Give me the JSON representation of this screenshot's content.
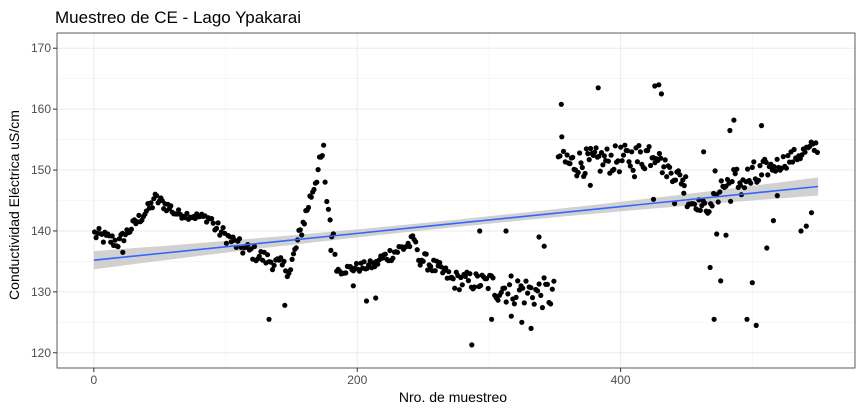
{
  "chart_data": {
    "type": "scatter",
    "title": "Muestreo de CE - Lago Ypakarai",
    "xlabel": "Nro. de muestreo",
    "ylabel": "Conductividad Eléctrica uS/cm",
    "xlim": [
      -28,
      578
    ],
    "ylim": [
      117.5,
      172.5
    ],
    "x_ticks": [
      0,
      200,
      400
    ],
    "y_ticks": [
      120,
      130,
      140,
      150,
      160,
      170
    ],
    "grid": true,
    "point_color": "#000000",
    "trend": {
      "method": "lm",
      "start": [
        0,
        135.2
      ],
      "end": [
        550,
        147.3
      ],
      "line_color": "#3366ff",
      "band_color": "#bebebe"
    },
    "segments": [
      {
        "x0": 0,
        "x1": 20,
        "y0": 139.5,
        "y1": 138,
        "n": 18,
        "noise": 1.2
      },
      {
        "x0": 20,
        "x1": 45,
        "y0": 138.5,
        "y1": 144.5,
        "n": 22,
        "noise": 1.0
      },
      {
        "x0": 45,
        "x1": 60,
        "y0": 145.5,
        "y1": 143.5,
        "n": 14,
        "noise": 1.0
      },
      {
        "x0": 60,
        "x1": 90,
        "y0": 143,
        "y1": 142,
        "n": 24,
        "noise": 0.7
      },
      {
        "x0": 90,
        "x1": 110,
        "y0": 141,
        "y1": 137.5,
        "n": 16,
        "noise": 1.2
      },
      {
        "x0": 110,
        "x1": 150,
        "y0": 137.5,
        "y1": 133.5,
        "n": 32,
        "noise": 1.3
      },
      {
        "x0": 150,
        "x1": 175,
        "y0": 134.5,
        "y1": 153.5,
        "n": 24,
        "noise": 1.5
      },
      {
        "x0": 175,
        "x1": 185,
        "y0": 148,
        "y1": 134,
        "n": 8,
        "noise": 1.5
      },
      {
        "x0": 185,
        "x1": 215,
        "y0": 133.5,
        "y1": 134.5,
        "n": 26,
        "noise": 0.8
      },
      {
        "x0": 215,
        "x1": 245,
        "y0": 135,
        "y1": 138.5,
        "n": 26,
        "noise": 1.2
      },
      {
        "x0": 245,
        "x1": 270,
        "y0": 136,
        "y1": 132.5,
        "n": 22,
        "noise": 1.3
      },
      {
        "x0": 270,
        "x1": 300,
        "y0": 132,
        "y1": 131.5,
        "n": 26,
        "noise": 1.6
      },
      {
        "x0": 300,
        "x1": 350,
        "y0": 131,
        "y1": 129.5,
        "n": 40,
        "noise": 2.6
      },
      {
        "x0": 352,
        "x1": 360,
        "y0": 153,
        "y1": 151,
        "n": 6,
        "noise": 3.5
      },
      {
        "x0": 360,
        "x1": 410,
        "y0": 151,
        "y1": 152,
        "n": 48,
        "noise": 2.3
      },
      {
        "x0": 410,
        "x1": 430,
        "y0": 151.5,
        "y1": 154,
        "n": 18,
        "noise": 2.8
      },
      {
        "x0": 430,
        "x1": 450,
        "y0": 151,
        "y1": 148,
        "n": 18,
        "noise": 1.5
      },
      {
        "x0": 450,
        "x1": 470,
        "y0": 145,
        "y1": 143.5,
        "n": 18,
        "noise": 1.0
      },
      {
        "x0": 470,
        "x1": 510,
        "y0": 147,
        "y1": 149,
        "n": 34,
        "noise": 3.0
      },
      {
        "x0": 510,
        "x1": 550,
        "y0": 150,
        "y1": 154,
        "n": 34,
        "noise": 1.3
      }
    ],
    "outliers": [
      [
        22,
        136.5
      ],
      [
        133,
        125.5
      ],
      [
        145,
        127.8
      ],
      [
        180,
        136.8
      ],
      [
        197,
        131
      ],
      [
        207,
        128.5
      ],
      [
        214,
        129
      ],
      [
        287,
        121.3
      ],
      [
        293,
        140
      ],
      [
        302,
        125.5
      ],
      [
        313,
        140
      ],
      [
        317,
        126
      ],
      [
        325,
        125
      ],
      [
        332,
        124
      ],
      [
        338,
        139
      ],
      [
        342,
        137.5
      ],
      [
        355,
        160.8
      ],
      [
        377,
        147.5
      ],
      [
        383,
        163.5
      ],
      [
        425,
        145.2
      ],
      [
        426,
        163.8
      ],
      [
        429,
        164
      ],
      [
        431,
        162.5
      ],
      [
        441,
        144.5
      ],
      [
        448,
        146.2
      ],
      [
        463,
        153
      ],
      [
        468,
        134
      ],
      [
        471,
        125.5
      ],
      [
        473,
        139.5
      ],
      [
        476,
        131.8
      ],
      [
        480,
        139.3
      ],
      [
        483,
        156.5
      ],
      [
        486,
        158.2
      ],
      [
        491,
        147.5
      ],
      [
        496,
        125.5
      ],
      [
        500,
        131.5
      ],
      [
        503,
        124.5
      ],
      [
        507,
        157.3
      ],
      [
        511,
        137.2
      ],
      [
        516,
        141.7
      ],
      [
        519,
        145.8
      ],
      [
        537,
        140
      ],
      [
        541,
        140.8
      ],
      [
        545,
        143
      ]
    ]
  }
}
